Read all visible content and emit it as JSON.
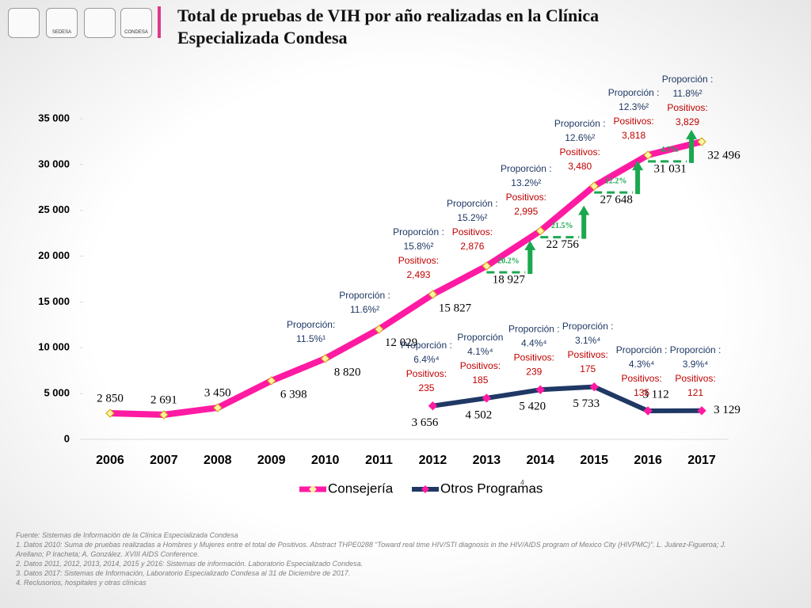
{
  "title": "Total de pruebas de VIH por año realizadas en la Clínica Especializada Condesa",
  "logos": [
    "SEDESA",
    "CONDESA"
  ],
  "page_number": "4",
  "footnotes": [
    "Fuente: Sistemas de Información de la Clínica Especializada Condesa",
    "1. Datos 2010: Suma de pruebas realizadas a Hombres y Mujeres entre el total de Positivos. Abstract THPE0288 “Toward real time HIV/STI diagnosis in the HIV/AIDS program of Mexico City (HIVPMC)”. L. Juárez-Figueroa; J. Arellano; P Iracheta; A. González. XVIII AIDS Conference.",
    "2. Datos 2011, 2012, 2013, 2014, 2015 y 2016: Sistemas de información. Laboratorio Especializado Condesa.",
    "3. Datos 2017: Sistemas de Información, Laboratorio Especializado Condesa al 31 de Diciembre de 2017.",
    "4. Reclusorios, hospitales y otras clínicas"
  ],
  "chart_data": {
    "type": "line",
    "categories": [
      "2006",
      "2007",
      "2008",
      "2009",
      "2010",
      "2011",
      "2012",
      "2013",
      "2014",
      "2015",
      "2016",
      "2017"
    ],
    "series": [
      {
        "name": "Consejería",
        "color": "#ff1aa3",
        "values": [
          2850,
          2691,
          3450,
          6398,
          8820,
          12029,
          15827,
          18927,
          22756,
          27648,
          31031,
          32496
        ],
        "value_labels": [
          "2 850",
          "2 691",
          "3 450",
          "6 398",
          "8 820",
          "12 029",
          "15 827",
          "18 927",
          "22 756",
          "27 648",
          "31 031",
          "32 496"
        ],
        "annotations": [
          {
            "category": "2010",
            "lines": [
              "Proporción:",
              "11.5%¹"
            ]
          },
          {
            "category": "2011",
            "lines": [
              "Proporción :",
              "11.6%²"
            ]
          },
          {
            "category": "2012",
            "lines": [
              "Proporción :",
              "15.8%²",
              "Positivos:",
              "2,493"
            ]
          },
          {
            "category": "2013",
            "lines": [
              "Proporción :",
              "15.2%²",
              "Positivos:",
              "2,876"
            ]
          },
          {
            "category": "2014",
            "lines": [
              "Proporción :",
              "13.2%²",
              "Positivos:",
              "2,995"
            ]
          },
          {
            "category": "2015",
            "lines": [
              "Proporción :",
              "12.6%²",
              "Positivos:",
              "3,480"
            ]
          },
          {
            "category": "2016",
            "lines": [
              "Proporción :",
              "12.3%²",
              "Positivos:",
              "3,818"
            ]
          },
          {
            "category": "2017",
            "lines": [
              "Proporción :",
              "11.8%²",
              "Positivos:",
              "3,829"
            ]
          }
        ],
        "growth": [
          {
            "category": "2014",
            "text": "20.2%"
          },
          {
            "category": "2015",
            "text": "21.5%"
          },
          {
            "category": "2016",
            "text": "12.2%"
          },
          {
            "category": "2017",
            "text": "4.7%"
          }
        ]
      },
      {
        "name": "Otros Programas",
        "color": "#1f3864",
        "values": [
          null,
          null,
          null,
          null,
          null,
          null,
          3656,
          4502,
          5420,
          5733,
          3112,
          3129
        ],
        "value_labels": [
          null,
          null,
          null,
          null,
          null,
          null,
          "3 656",
          "4 502",
          "5 420",
          "5 733",
          "3 112",
          "3 129"
        ],
        "annotations": [
          {
            "category": "2012",
            "lines": [
              "Proporción :",
              "6.4%⁴",
              "Positivos:",
              "235"
            ]
          },
          {
            "category": "2013",
            "lines": [
              "Proporción",
              "4.1%⁴",
              "Positivos:",
              "185"
            ]
          },
          {
            "category": "2014",
            "lines": [
              "Proporción :",
              "4.4%⁴",
              "Positivos:",
              "239"
            ]
          },
          {
            "category": "2015",
            "lines": [
              "Proporción :",
              "3.1%⁴",
              "Positivos:",
              "175"
            ]
          },
          {
            "category": "2016",
            "lines": [
              "Proporción :",
              "4.3%⁴",
              "Positivos:",
              "135"
            ]
          },
          {
            "category": "2017",
            "lines": [
              "Proporción :",
              "3.9%⁴",
              "Positivos:",
              "121"
            ]
          }
        ]
      }
    ],
    "ylim": [
      0,
      35000
    ],
    "yticks": [
      0,
      {
        "value": 5000,
        "label": "5 000"
      },
      {
        "value": 10000,
        "label": "10 000"
      },
      {
        "value": 15000,
        "label": "15 000"
      },
      {
        "value": 20000,
        "label": "20 000"
      },
      {
        "value": 25000,
        "label": "25 000"
      },
      {
        "value": 30000,
        "label": "30 000"
      },
      {
        "value": 35000,
        "label": "35 000"
      }
    ],
    "grid": false,
    "legend": "bottom"
  }
}
